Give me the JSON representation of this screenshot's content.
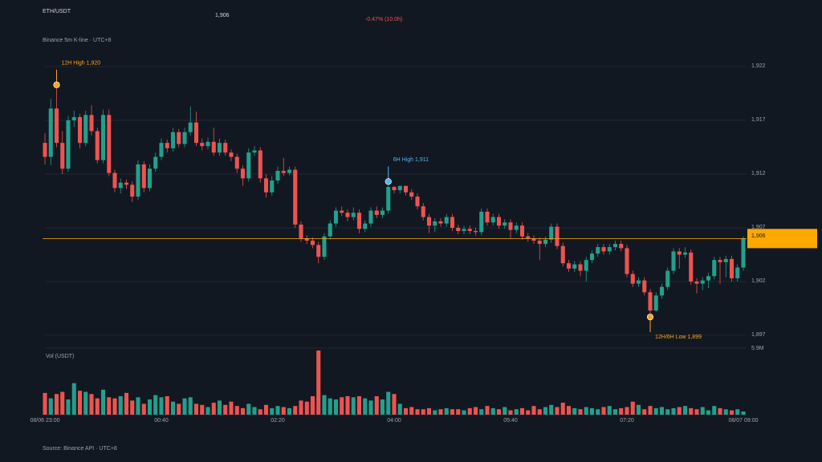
{
  "header": {
    "symbol": "ETH/USDT",
    "subtitle": "Binance 5m K-line · UTC+8",
    "change": "-0.47% (10.0h)"
  },
  "chart_data": {
    "type": "candlestick",
    "last_price": {
      "value": 1906,
      "label": "1,906"
    },
    "last_price_color": "#ffa800",
    "up_color": "#22a08d",
    "down_color": "#ef5350",
    "categories": [
      "08/06 23:00",
      null,
      null,
      null,
      null,
      null,
      null,
      null,
      null,
      null,
      null,
      null,
      null,
      null,
      null,
      null,
      null,
      null,
      null,
      null,
      "00:40",
      null,
      null,
      null,
      null,
      null,
      null,
      null,
      null,
      null,
      null,
      null,
      null,
      null,
      null,
      null,
      null,
      null,
      null,
      null,
      "02:20",
      null,
      null,
      null,
      null,
      null,
      null,
      null,
      null,
      null,
      null,
      null,
      null,
      null,
      null,
      null,
      null,
      null,
      null,
      null,
      "04:00",
      null,
      null,
      null,
      null,
      null,
      null,
      null,
      null,
      null,
      null,
      null,
      null,
      null,
      null,
      null,
      null,
      null,
      null,
      null,
      "05:40",
      null,
      null,
      null,
      null,
      null,
      null,
      null,
      null,
      null,
      null,
      null,
      null,
      null,
      null,
      null,
      null,
      null,
      null,
      null,
      "07:20",
      null,
      null,
      null,
      null,
      null,
      null,
      null,
      null,
      null,
      null,
      null,
      null,
      null,
      null,
      null,
      null,
      null,
      null,
      null,
      "08/07 09:00"
    ],
    "ohlc": [
      [
        1914.9,
        1915.8,
        1912.9,
        1913.6
      ],
      [
        1913.6,
        1919.0,
        1912.8,
        1918.1
      ],
      [
        1918.1,
        1920.0,
        1914.5,
        1914.9
      ],
      [
        1914.9,
        1916.0,
        1912.0,
        1912.5
      ],
      [
        1912.5,
        1917.4,
        1912.2,
        1917.0
      ],
      [
        1917.0,
        1917.9,
        1916.4,
        1917.3
      ],
      [
        1917.3,
        1917.6,
        1914.4,
        1914.9
      ],
      [
        1914.9,
        1917.9,
        1914.6,
        1917.5
      ],
      [
        1917.5,
        1918.4,
        1915.6,
        1916.0
      ],
      [
        1916.0,
        1916.3,
        1913.0,
        1913.3
      ],
      [
        1913.3,
        1918.0,
        1913.0,
        1917.5
      ],
      [
        1917.5,
        1918.0,
        1911.8,
        1912.1
      ],
      [
        1912.1,
        1912.4,
        1910.3,
        1910.7
      ],
      [
        1910.7,
        1911.6,
        1910.2,
        1911.2
      ],
      [
        1911.2,
        1911.5,
        1910.6,
        1911.0
      ],
      [
        1911.0,
        1911.3,
        1909.4,
        1909.9
      ],
      [
        1909.9,
        1913.3,
        1909.6,
        1912.9
      ],
      [
        1912.9,
        1913.2,
        1910.3,
        1910.7
      ],
      [
        1910.7,
        1912.9,
        1910.4,
        1912.5
      ],
      [
        1912.5,
        1914.0,
        1912.2,
        1913.6
      ],
      [
        1913.6,
        1915.3,
        1913.3,
        1914.9
      ],
      [
        1914.9,
        1915.2,
        1914.0,
        1914.4
      ],
      [
        1914.4,
        1916.3,
        1914.1,
        1915.9
      ],
      [
        1915.9,
        1916.2,
        1914.5,
        1914.8
      ],
      [
        1914.8,
        1916.3,
        1914.5,
        1915.9
      ],
      [
        1915.9,
        1918.3,
        1915.6,
        1916.8
      ],
      [
        1916.8,
        1917.8,
        1914.6,
        1914.9
      ],
      [
        1914.9,
        1915.3,
        1914.2,
        1914.6
      ],
      [
        1914.6,
        1915.4,
        1914.3,
        1915.0
      ],
      [
        1915.0,
        1916.3,
        1913.7,
        1914.0
      ],
      [
        1914.0,
        1915.3,
        1913.7,
        1914.9
      ],
      [
        1914.9,
        1915.2,
        1913.7,
        1914.0
      ],
      [
        1914.0,
        1914.3,
        1913.2,
        1913.6
      ],
      [
        1913.6,
        1913.9,
        1912.1,
        1912.5
      ],
      [
        1912.5,
        1912.8,
        1910.9,
        1911.6
      ],
      [
        1911.6,
        1914.4,
        1911.3,
        1914.0
      ],
      [
        1914.0,
        1914.6,
        1913.7,
        1914.2
      ],
      [
        1914.2,
        1914.5,
        1911.2,
        1911.6
      ],
      [
        1911.6,
        1912.0,
        1909.8,
        1910.3
      ],
      [
        1910.3,
        1911.8,
        1910.0,
        1911.4
      ],
      [
        1911.4,
        1912.7,
        1911.1,
        1912.3
      ],
      [
        1912.3,
        1913.5,
        1911.8,
        1912.1
      ],
      [
        1912.1,
        1912.7,
        1911.9,
        1912.4
      ],
      [
        1912.4,
        1912.7,
        1907.0,
        1907.3
      ],
      [
        1907.3,
        1907.6,
        1905.7,
        1906.0
      ],
      [
        1906.0,
        1906.3,
        1905.5,
        1905.8
      ],
      [
        1905.8,
        1906.1,
        1905.1,
        1905.4
      ],
      [
        1905.4,
        1905.7,
        1903.7,
        1904.3
      ],
      [
        1904.3,
        1906.5,
        1904.0,
        1906.2
      ],
      [
        1906.2,
        1907.7,
        1905.9,
        1907.4
      ],
      [
        1907.4,
        1908.9,
        1907.1,
        1908.6
      ],
      [
        1908.6,
        1909.0,
        1908.1,
        1908.4
      ],
      [
        1908.4,
        1908.7,
        1907.6,
        1908.0
      ],
      [
        1908.0,
        1908.9,
        1907.7,
        1908.4
      ],
      [
        1908.4,
        1908.7,
        1906.5,
        1906.9
      ],
      [
        1906.9,
        1907.7,
        1906.6,
        1907.4
      ],
      [
        1907.4,
        1908.9,
        1907.1,
        1908.6
      ],
      [
        1908.6,
        1909.0,
        1907.9,
        1908.2
      ],
      [
        1908.2,
        1908.9,
        1907.9,
        1908.6
      ],
      [
        1908.6,
        1911.0,
        1908.3,
        1910.8
      ],
      [
        1910.8,
        1910.9,
        1910.2,
        1910.5
      ],
      [
        1910.5,
        1910.9,
        1910.2,
        1910.9
      ],
      [
        1910.9,
        1910.9,
        1910.0,
        1910.3
      ],
      [
        1910.3,
        1910.6,
        1909.6,
        1909.9
      ],
      [
        1909.9,
        1910.2,
        1908.7,
        1909.0
      ],
      [
        1909.0,
        1909.3,
        1907.7,
        1908.0
      ],
      [
        1908.0,
        1908.3,
        1906.5,
        1907.2
      ],
      [
        1907.2,
        1907.9,
        1906.6,
        1907.6
      ],
      [
        1907.6,
        1907.9,
        1907.1,
        1907.4
      ],
      [
        1907.4,
        1908.3,
        1907.1,
        1908.0
      ],
      [
        1908.0,
        1908.3,
        1906.7,
        1907.0
      ],
      [
        1907.0,
        1907.3,
        1906.4,
        1906.7
      ],
      [
        1906.7,
        1907.2,
        1906.4,
        1906.9
      ],
      [
        1906.9,
        1907.2,
        1906.4,
        1906.7
      ],
      [
        1906.7,
        1907.0,
        1906.3,
        1906.6
      ],
      [
        1906.6,
        1908.8,
        1906.3,
        1908.5
      ],
      [
        1908.5,
        1908.8,
        1907.2,
        1907.5
      ],
      [
        1907.5,
        1908.3,
        1907.2,
        1908.0
      ],
      [
        1908.0,
        1908.3,
        1906.9,
        1907.2
      ],
      [
        1907.2,
        1907.8,
        1906.9,
        1907.5
      ],
      [
        1907.5,
        1907.8,
        1906.0,
        1906.8
      ],
      [
        1906.8,
        1907.5,
        1906.5,
        1907.2
      ],
      [
        1907.2,
        1907.5,
        1905.9,
        1906.2
      ],
      [
        1906.2,
        1906.5,
        1905.7,
        1906.0
      ],
      [
        1906.0,
        1906.3,
        1905.5,
        1905.8
      ],
      [
        1905.8,
        1906.1,
        1904.0,
        1905.5
      ],
      [
        1905.5,
        1906.2,
        1905.2,
        1905.9
      ],
      [
        1905.9,
        1907.4,
        1905.6,
        1907.1
      ],
      [
        1907.1,
        1907.4,
        1905.0,
        1905.3
      ],
      [
        1905.3,
        1905.6,
        1903.4,
        1903.7
      ],
      [
        1903.7,
        1904.0,
        1902.9,
        1903.2
      ],
      [
        1903.2,
        1903.9,
        1902.9,
        1903.6
      ],
      [
        1903.6,
        1903.9,
        1902.5,
        1903.0
      ],
      [
        1903.0,
        1904.3,
        1902.0,
        1904.0
      ],
      [
        1904.0,
        1904.9,
        1903.7,
        1904.6
      ],
      [
        1904.6,
        1905.5,
        1904.3,
        1905.2
      ],
      [
        1905.2,
        1905.5,
        1904.5,
        1904.8
      ],
      [
        1904.8,
        1905.5,
        1904.5,
        1905.2
      ],
      [
        1905.2,
        1905.8,
        1904.9,
        1905.5
      ],
      [
        1905.5,
        1905.8,
        1904.8,
        1905.1
      ],
      [
        1905.1,
        1905.4,
        1902.4,
        1902.7
      ],
      [
        1902.7,
        1903.0,
        1901.5,
        1901.8
      ],
      [
        1901.8,
        1902.4,
        1901.5,
        1902.1
      ],
      [
        1902.1,
        1902.4,
        1900.7,
        1901.0
      ],
      [
        1901.0,
        1901.3,
        1899.0,
        1899.3
      ],
      [
        1899.3,
        1901.0,
        1899.2,
        1900.7
      ],
      [
        1900.7,
        1901.8,
        1900.4,
        1901.5
      ],
      [
        1901.5,
        1903.3,
        1901.2,
        1903.0
      ],
      [
        1903.0,
        1905.1,
        1902.7,
        1904.8
      ],
      [
        1904.8,
        1905.1,
        1903.2,
        1904.5
      ],
      [
        1904.5,
        1905.2,
        1904.2,
        1904.7
      ],
      [
        1904.7,
        1905.0,
        1901.7,
        1902.0
      ],
      [
        1902.0,
        1902.3,
        1900.9,
        1901.8
      ],
      [
        1901.8,
        1902.4,
        1901.2,
        1902.1
      ],
      [
        1902.1,
        1902.8,
        1901.4,
        1902.5
      ],
      [
        1902.5,
        1904.3,
        1902.2,
        1904.0
      ],
      [
        1904.0,
        1904.3,
        1901.8,
        1903.8
      ],
      [
        1903.8,
        1904.4,
        1902.4,
        1904.1
      ],
      [
        1904.1,
        1904.4,
        1902.0,
        1902.3
      ],
      [
        1902.3,
        1903.6,
        1902.0,
        1903.3
      ],
      [
        1903.3,
        1906.2,
        1903.0,
        1906.0
      ]
    ],
    "ylim": [
      1896.4,
      1922.6
    ],
    "yticks": [
      {
        "value": 1897,
        "label": "1,897"
      },
      {
        "value": 1902,
        "label": "1,902"
      },
      {
        "value": 1907,
        "label": "1,907"
      },
      {
        "value": 1912,
        "label": "1,912"
      },
      {
        "value": 1917,
        "label": "1,917"
      },
      {
        "value": 1922,
        "label": "1,922"
      }
    ],
    "grid": true,
    "annotations": [
      {
        "text": "12H High 1,920",
        "value": 1920,
        "color": "#f5a623"
      },
      {
        "text": "6H High 1,911",
        "value": 1911,
        "color": "#5ab4e8"
      },
      {
        "text": "12H/6H Low 1,899",
        "value": 1899,
        "color": "#f5a623"
      }
    ],
    "volume": {
      "label": "Vol (USDT)",
      "ylim": [
        0,
        5.9
      ],
      "yticks": [
        {
          "value": 5.9,
          "label": "5.9M"
        }
      ],
      "values": [
        2.0,
        1.5,
        1.9,
        2.1,
        1.4,
        2.9,
        2.2,
        2.1,
        1.9,
        1.5,
        2.3,
        1.6,
        1.5,
        1.7,
        2.0,
        1.3,
        1.6,
        1.0,
        1.4,
        1.8,
        1.6,
        1.7,
        1.2,
        1.0,
        1.5,
        1.6,
        1.0,
        0.9,
        0.7,
        1.1,
        1.3,
        0.9,
        1.2,
        0.8,
        0.6,
        1.0,
        0.7,
        0.5,
        0.9,
        0.6,
        0.8,
        0.7,
        0.6,
        0.8,
        1.3,
        1.2,
        1.7,
        5.9,
        1.8,
        1.5,
        1.4,
        1.6,
        1.7,
        1.6,
        1.7,
        1.5,
        1.3,
        1.7,
        1.4,
        2.1,
        1.9,
        1.0,
        0.6,
        0.7,
        0.5,
        0.5,
        0.6,
        0.4,
        0.5,
        0.6,
        0.5,
        0.5,
        0.4,
        0.6,
        0.7,
        0.5,
        0.8,
        0.6,
        0.5,
        0.7,
        0.4,
        0.5,
        0.6,
        0.4,
        0.8,
        0.5,
        0.7,
        0.9,
        0.7,
        1.1,
        0.8,
        0.6,
        0.5,
        0.7,
        0.6,
        0.5,
        0.7,
        0.8,
        0.5,
        0.6,
        0.7,
        1.2,
        0.9,
        0.5,
        0.8,
        0.6,
        0.7,
        0.5,
        0.6,
        0.7,
        0.8,
        0.6,
        0.5,
        0.7,
        0.4,
        0.8,
        0.6,
        0.5,
        0.4,
        0.5,
        0.3
      ]
    }
  },
  "footer": "Source: Binance API · UTC+8"
}
